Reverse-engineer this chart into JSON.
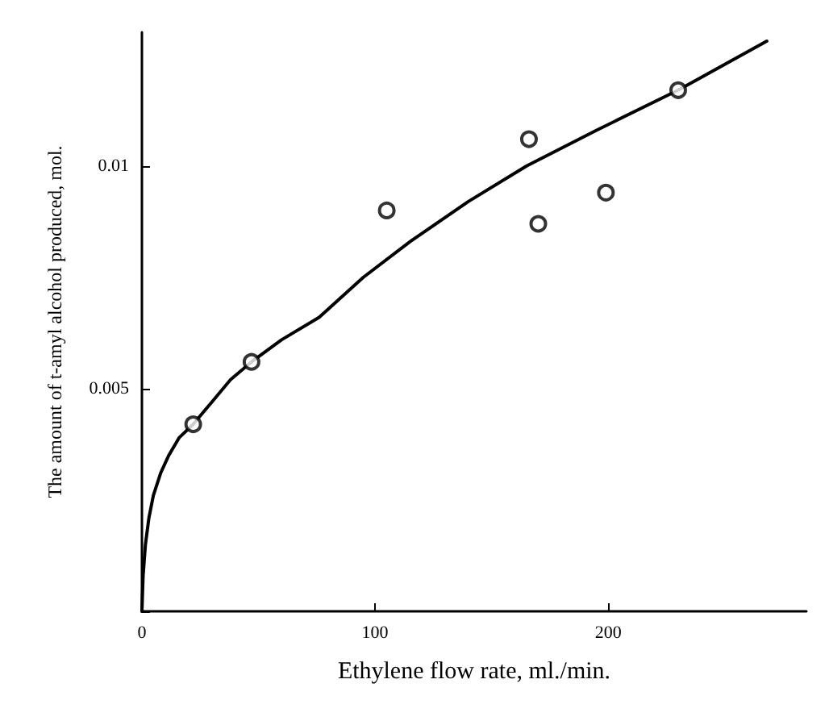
{
  "chart_data": {
    "type": "scatter",
    "xlabel": "Ethylene flow rate, ml./min.",
    "ylabel": "The amount of t-amyl alcohol produced, mol.",
    "xlim": [
      0,
      285
    ],
    "xticks": [
      0,
      100,
      200
    ],
    "ylim": [
      0,
      0.013
    ],
    "yticks": [
      {
        "value": 0,
        "label": null
      },
      0.005,
      0.01
    ],
    "grid": false,
    "series": [
      {
        "color": "#000000",
        "marker": "circle",
        "x": [
          22,
          47,
          105,
          166,
          170,
          199,
          230
        ],
        "values": [
          0.0042,
          0.0056,
          0.009,
          0.0106,
          0.0087,
          0.0094,
          0.0117
        ]
      },
      {
        "type": "line",
        "color": "#000000",
        "marker": "none",
        "line_style": "solid",
        "x": [
          0,
          0.5,
          1.5,
          3,
          4.9,
          8,
          11.5,
          16,
          22,
          30,
          38,
          47,
          60,
          76,
          95,
          115,
          140,
          165,
          195,
          230,
          268
        ],
        "values": [
          0,
          0.0008,
          0.0015,
          0.0021,
          0.0026,
          0.0031,
          0.0035,
          0.0039,
          0.0042,
          0.0047,
          0.0052,
          0.0056,
          0.0061,
          0.0066,
          0.0075,
          0.0083,
          0.0092,
          0.01,
          0.0108,
          0.0117,
          0.0128
        ]
      }
    ]
  }
}
